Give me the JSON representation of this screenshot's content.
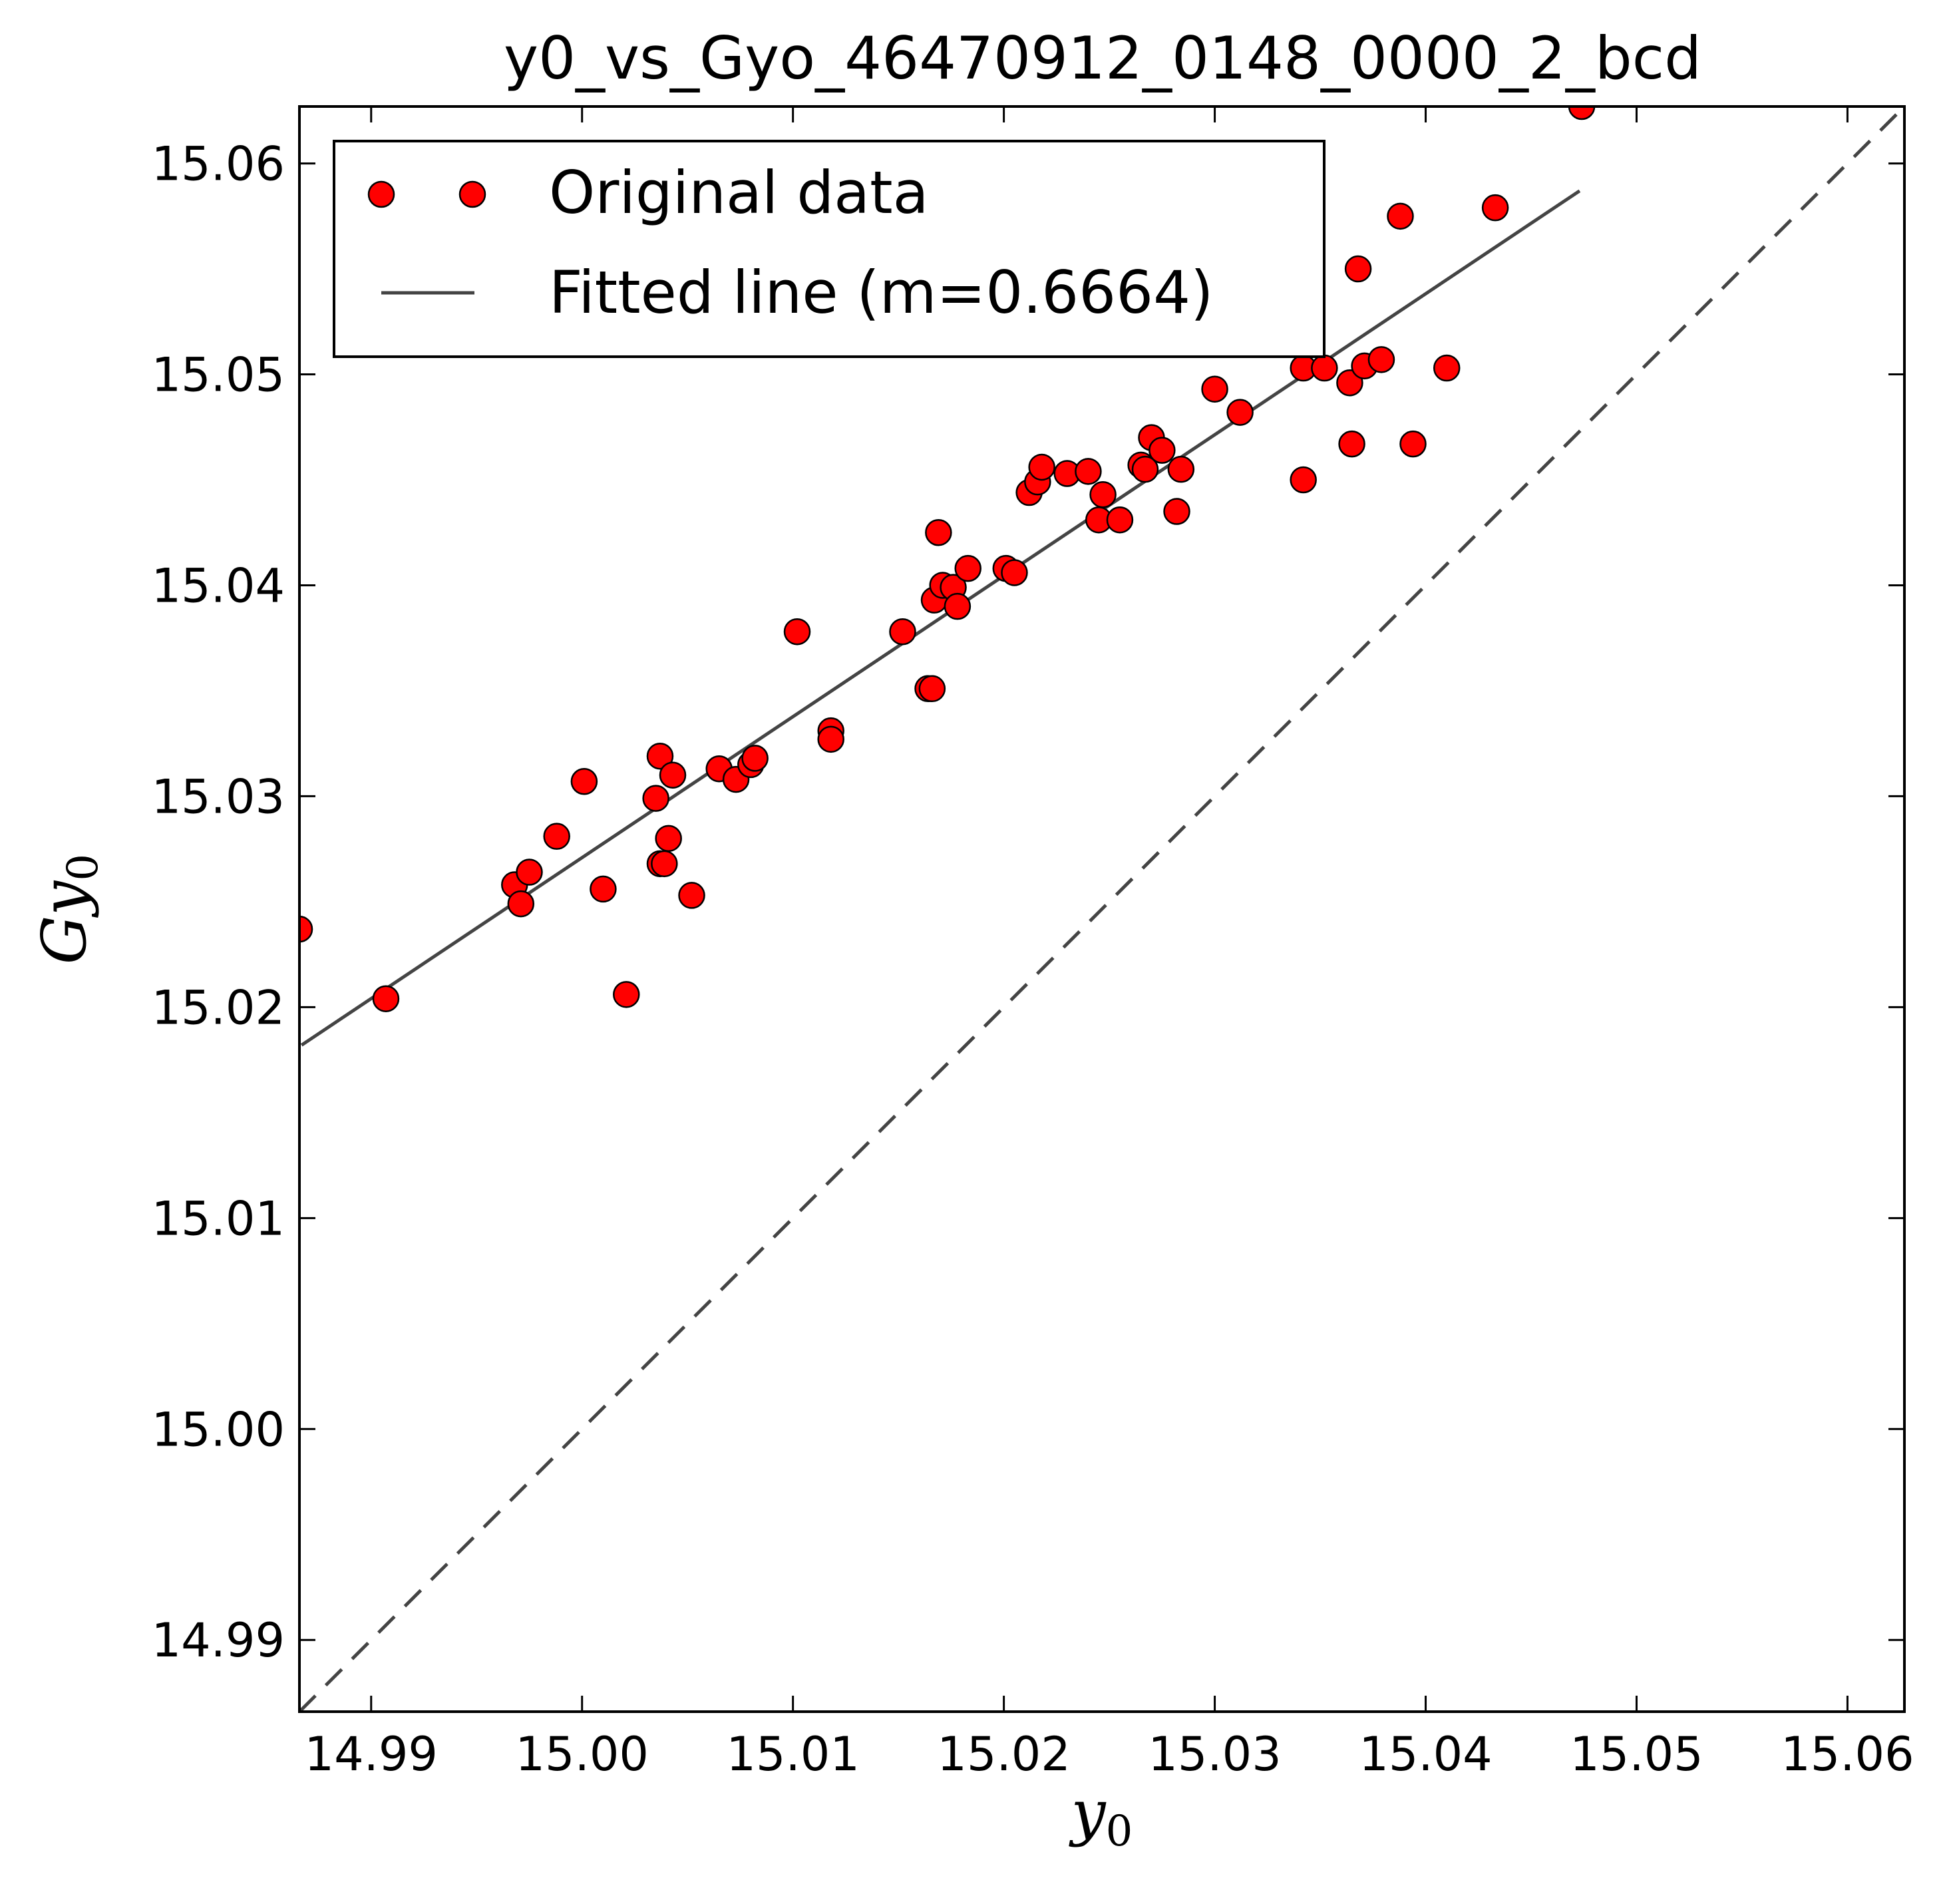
{
  "chart_data": {
    "type": "scatter",
    "title": "y0_vs_Gyo_46470912_0148_0000_2_bcd",
    "xlabel": "y",
    "xlabel_sub": "0",
    "ylabel": "Gy",
    "ylabel_sub": "0",
    "xlim": [
      14.9866,
      15.0627
    ],
    "ylim": [
      14.9866,
      15.0627
    ],
    "xticks": [
      14.99,
      15.0,
      15.01,
      15.02,
      15.03,
      15.04,
      15.05,
      15.06
    ],
    "yticks": [
      14.99,
      15.0,
      15.01,
      15.02,
      15.03,
      15.04,
      15.05,
      15.06
    ],
    "xtick_labels": [
      "14.99",
      "15.00",
      "15.01",
      "15.02",
      "15.03",
      "15.04",
      "15.05",
      "15.06"
    ],
    "ytick_labels": [
      "14.99",
      "15.00",
      "15.01",
      "15.02",
      "15.03",
      "15.04",
      "15.05",
      "15.06"
    ],
    "grid": false,
    "legend_position": "top-left",
    "series": [
      {
        "name": "Original data",
        "kind": "points",
        "color": "#ff0000",
        "points": [
          [
            14.9866,
            15.0237
          ],
          [
            14.9907,
            15.0204
          ],
          [
            14.9968,
            15.0258
          ],
          [
            14.9971,
            15.0249
          ],
          [
            14.9975,
            15.0264
          ],
          [
            14.9988,
            15.0281
          ],
          [
            15.0001,
            15.0307
          ],
          [
            15.001,
            15.0256
          ],
          [
            15.0021,
            15.0206
          ],
          [
            15.0035,
            15.0299
          ],
          [
            15.0037,
            15.0319
          ],
          [
            15.0037,
            15.0268
          ],
          [
            15.0039,
            15.0268
          ],
          [
            15.0041,
            15.028
          ],
          [
            15.0043,
            15.031
          ],
          [
            15.0052,
            15.0253
          ],
          [
            15.0065,
            15.0313
          ],
          [
            15.0073,
            15.0308
          ],
          [
            15.008,
            15.0315
          ],
          [
            15.0082,
            15.0318
          ],
          [
            15.0102,
            15.0378
          ],
          [
            15.0118,
            15.0331
          ],
          [
            15.0118,
            15.0327
          ],
          [
            15.0152,
            15.0378
          ],
          [
            15.0164,
            15.0351
          ],
          [
            15.0166,
            15.0351
          ],
          [
            15.0167,
            15.0393
          ],
          [
            15.0169,
            15.0425
          ],
          [
            15.0171,
            15.04
          ],
          [
            15.0176,
            15.0399
          ],
          [
            15.0178,
            15.039
          ],
          [
            15.0183,
            15.0408
          ],
          [
            15.0201,
            15.0408
          ],
          [
            15.0205,
            15.0406
          ],
          [
            15.0212,
            15.0444
          ],
          [
            15.0216,
            15.0449
          ],
          [
            15.0218,
            15.0456
          ],
          [
            15.023,
            15.0453
          ],
          [
            15.024,
            15.0454
          ],
          [
            15.0245,
            15.0431
          ],
          [
            15.0247,
            15.0443
          ],
          [
            15.0255,
            15.0431
          ],
          [
            15.0265,
            15.0457
          ],
          [
            15.0267,
            15.0455
          ],
          [
            15.027,
            15.047
          ],
          [
            15.0275,
            15.0464
          ],
          [
            15.0282,
            15.0435
          ],
          [
            15.0284,
            15.0455
          ],
          [
            15.03,
            15.0493
          ],
          [
            15.0312,
            15.0482
          ],
          [
            15.0342,
            15.0503
          ],
          [
            15.0342,
            15.045
          ],
          [
            15.0352,
            15.0503
          ],
          [
            15.0364,
            15.0496
          ],
          [
            15.0365,
            15.0467
          ],
          [
            15.0368,
            15.055
          ],
          [
            15.0371,
            15.0504
          ],
          [
            15.0379,
            15.0507
          ],
          [
            15.0388,
            15.0575
          ],
          [
            15.0394,
            15.0467
          ],
          [
            15.041,
            15.0503
          ],
          [
            15.0433,
            15.0579
          ],
          [
            15.0474,
            15.0627
          ]
        ]
      },
      {
        "name": "Fitted line (m=0.6664)",
        "kind": "line",
        "color": "#444444",
        "points": [
          [
            14.9867,
            15.0182
          ],
          [
            15.0473,
            15.0587
          ]
        ]
      }
    ]
  }
}
